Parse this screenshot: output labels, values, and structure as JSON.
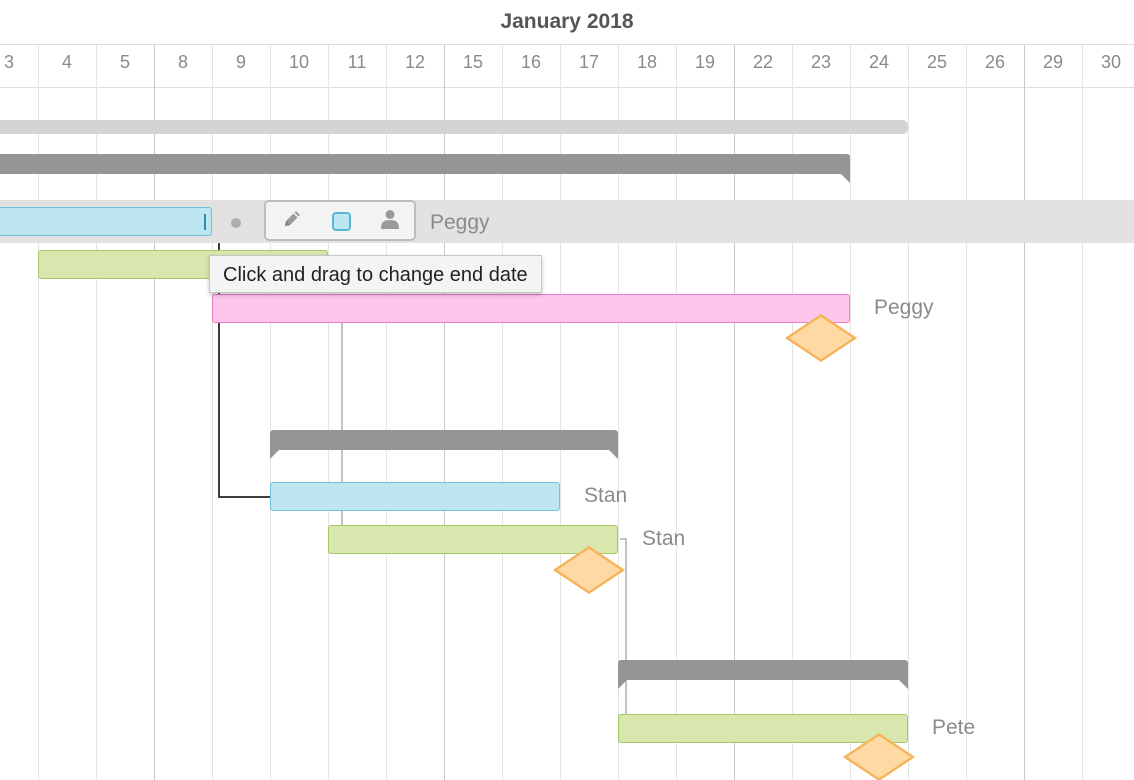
{
  "timeline": {
    "month_label": "January 2018",
    "days": [
      "3",
      "4",
      "5",
      "8",
      "9",
      "10",
      "11",
      "12",
      "15",
      "16",
      "17",
      "18",
      "19",
      "22",
      "23",
      "24",
      "25",
      "26",
      "29",
      "30"
    ]
  },
  "rows": [
    {
      "type": "summary",
      "start": "3",
      "end": "24"
    },
    {
      "type": "group",
      "start": "3",
      "end": "23"
    },
    {
      "type": "task",
      "color": "blue",
      "start": "3",
      "end": "8",
      "assignee": "Peggy",
      "selected": true
    },
    {
      "type": "task",
      "color": "green",
      "start": "4",
      "end": "10",
      "assignee": ""
    },
    {
      "type": "task",
      "color": "pink",
      "start": "9",
      "end": "23",
      "assignee": "Peggy"
    },
    {
      "type": "milestone",
      "date": "23"
    },
    {
      "type": "group",
      "start": "10",
      "end": "17"
    },
    {
      "type": "task",
      "color": "blue",
      "start": "10",
      "end": "16",
      "assignee": "Stan"
    },
    {
      "type": "task",
      "color": "green",
      "start": "11",
      "end": "17",
      "assignee": "Stan"
    },
    {
      "type": "milestone",
      "date": "17"
    },
    {
      "type": "group",
      "start": "18",
      "end": "24"
    },
    {
      "type": "task",
      "color": "green",
      "start": "18",
      "end": "24",
      "assignee": "Pete"
    },
    {
      "type": "milestone",
      "date": "24"
    }
  ],
  "selected_task_toolbar": {
    "edit_icon": "pencil-icon",
    "color_icon": "color-swatch-icon",
    "assign_icon": "person-icon",
    "swatch_color": "#bde6f0",
    "assignee": "Peggy"
  },
  "tooltip": {
    "text": "Click and drag to change end date"
  },
  "colors": {
    "blue_task": "#bde6f0",
    "green_task": "#d7e7ad",
    "pink_task": "#fdc7ec",
    "milestone": "#fed9a3",
    "group_bar": "#959595",
    "selected_row": "#e2e2e2"
  }
}
